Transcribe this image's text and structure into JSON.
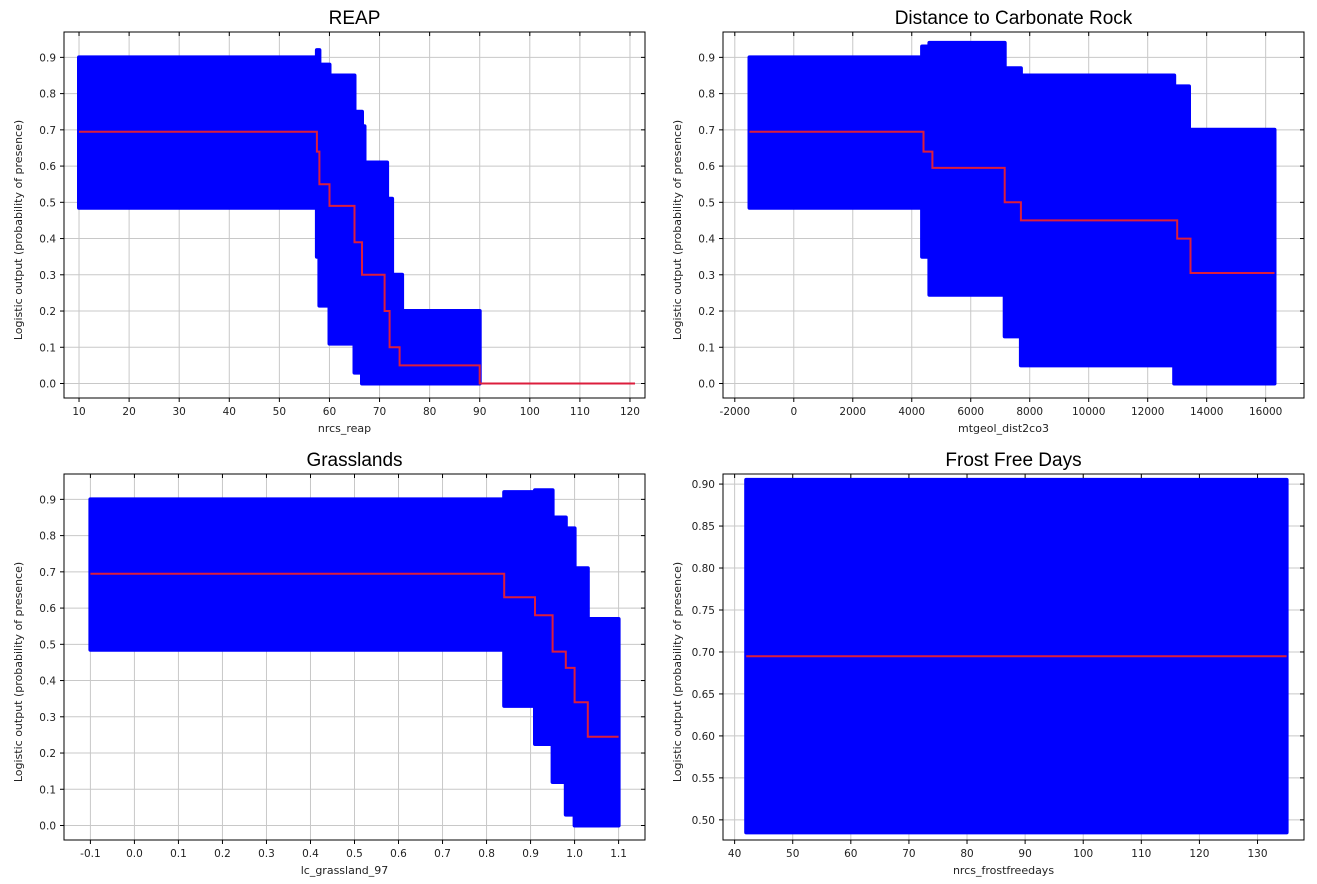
{
  "chart_data": [
    {
      "type": "line",
      "title": "REAP",
      "xlabel": "nrcs_reap",
      "ylabel": "Logistic output (probability of presence)",
      "xlim": [
        7,
        123
      ],
      "ylim": [
        -0.04,
        0.97
      ],
      "xticks": [
        10,
        20,
        30,
        40,
        50,
        60,
        70,
        80,
        90,
        100,
        110,
        120
      ],
      "xtick_labels": [
        "10",
        "20",
        "30",
        "40",
        "50",
        "60",
        "70",
        "80",
        "90",
        "100",
        "110",
        "120"
      ],
      "yticks": [
        0,
        0.1,
        0.2,
        0.3,
        0.4,
        0.5,
        0.6,
        0.7,
        0.8,
        0.9
      ],
      "ytick_labels": [
        "0.0",
        "0.1",
        "0.2",
        "0.3",
        "0.4",
        "0.5",
        "0.6",
        "0.7",
        "0.8",
        "0.9"
      ],
      "grid": true,
      "series": [
        {
          "role": "band",
          "color": "#0000ff",
          "x": [
            10,
            57.5,
            57.5,
            58,
            58,
            60,
            60,
            65,
            65,
            66.5,
            66.5,
            67,
            67,
            71.5,
            71.5,
            72.5,
            72.5,
            74.5,
            74.5,
            90,
            90
          ],
          "upper": [
            0.9,
            0.9,
            0.92,
            0.92,
            0.88,
            0.88,
            0.85,
            0.85,
            0.75,
            0.75,
            0.71,
            0.71,
            0.61,
            0.61,
            0.51,
            0.51,
            0.3,
            0.3,
            0.2,
            0.2,
            0
          ],
          "lower": [
            0.485,
            0.485,
            0.35,
            0.35,
            0.215,
            0.215,
            0.11,
            0.11,
            0.03,
            0.03,
            0.0,
            0.0,
            0.0,
            0.0,
            0.0,
            0.0,
            0.0,
            0.0,
            0.0,
            0.0,
            0
          ]
        },
        {
          "role": "mean",
          "color": "#dc1e3c",
          "x": [
            10,
            57.5,
            57.5,
            58,
            58,
            60,
            60,
            65,
            65,
            66.5,
            66.5,
            71,
            71,
            72,
            72,
            74,
            74,
            90,
            90,
            121
          ],
          "y": [
            0.695,
            0.695,
            0.64,
            0.64,
            0.55,
            0.55,
            0.49,
            0.49,
            0.39,
            0.39,
            0.3,
            0.3,
            0.2,
            0.2,
            0.1,
            0.1,
            0.05,
            0.05,
            0.0,
            0.0
          ]
        }
      ]
    },
    {
      "type": "line",
      "title": "Distance to Carbonate Rock",
      "xlabel": "mtgeol_dist2co3",
      "ylabel": "Logistic output (probability of presence)",
      "xlim": [
        -2400,
        17300
      ],
      "ylim": [
        -0.04,
        0.97
      ],
      "xticks": [
        -2000,
        0,
        2000,
        4000,
        6000,
        8000,
        10000,
        12000,
        14000,
        16000
      ],
      "xtick_labels": [
        "-2000",
        "0",
        "2000",
        "4000",
        "6000",
        "8000",
        "10000",
        "12000",
        "14000",
        "16000"
      ],
      "yticks": [
        0,
        0.1,
        0.2,
        0.3,
        0.4,
        0.5,
        0.6,
        0.7,
        0.8,
        0.9
      ],
      "ytick_labels": [
        "0.0",
        "0.1",
        "0.2",
        "0.3",
        "0.4",
        "0.5",
        "0.6",
        "0.7",
        "0.8",
        "0.9"
      ],
      "grid": true,
      "series": [
        {
          "role": "band",
          "color": "#0000ff",
          "x": [
            -1500,
            4350,
            4350,
            4600,
            4600,
            7150,
            7150,
            7700,
            7700,
            12900,
            12900,
            13400,
            13400,
            16300
          ],
          "upper": [
            0.9,
            0.9,
            0.93,
            0.93,
            0.94,
            0.94,
            0.87,
            0.87,
            0.85,
            0.85,
            0.82,
            0.82,
            0.7,
            0.7
          ],
          "lower": [
            0.485,
            0.485,
            0.35,
            0.35,
            0.245,
            0.245,
            0.13,
            0.13,
            0.05,
            0.05,
            0.0,
            0.0,
            0.0,
            0.0
          ]
        },
        {
          "role": "mean",
          "color": "#dc1e3c",
          "x": [
            -1500,
            4400,
            4400,
            4700,
            4700,
            7150,
            7150,
            7700,
            7700,
            13000,
            13000,
            13450,
            13450,
            16300
          ],
          "y": [
            0.695,
            0.695,
            0.64,
            0.64,
            0.595,
            0.595,
            0.5,
            0.5,
            0.45,
            0.45,
            0.4,
            0.4,
            0.305,
            0.305
          ]
        }
      ]
    },
    {
      "type": "line",
      "title": "Grasslands",
      "xlabel": "lc_grassland_97",
      "ylabel": "Logistic output (probability of presence)",
      "xlim": [
        -0.16,
        1.16
      ],
      "ylim": [
        -0.04,
        0.97
      ],
      "xticks": [
        -0.1,
        0,
        0.1,
        0.2,
        0.3,
        0.4,
        0.5,
        0.6,
        0.7,
        0.8,
        0.9,
        1.0,
        1.1
      ],
      "xtick_labels": [
        "-0.1",
        "0.0",
        "0.1",
        "0.2",
        "0.3",
        "0.4",
        "0.5",
        "0.6",
        "0.7",
        "0.8",
        "0.9",
        "1.0",
        "1.1"
      ],
      "yticks": [
        0,
        0.1,
        0.2,
        0.3,
        0.4,
        0.5,
        0.6,
        0.7,
        0.8,
        0.9
      ],
      "ytick_labels": [
        "0.0",
        "0.1",
        "0.2",
        "0.3",
        "0.4",
        "0.5",
        "0.6",
        "0.7",
        "0.8",
        "0.9"
      ],
      "grid": true,
      "series": [
        {
          "role": "band",
          "color": "#0000ff",
          "x": [
            -0.1,
            0.84,
            0.84,
            0.91,
            0.91,
            0.95,
            0.95,
            0.98,
            0.98,
            1.0,
            1.0,
            1.03,
            1.03,
            1.1
          ],
          "upper": [
            0.9,
            0.9,
            0.92,
            0.92,
            0.925,
            0.925,
            0.85,
            0.85,
            0.82,
            0.82,
            0.71,
            0.71,
            0.57,
            0.57
          ],
          "lower": [
            0.485,
            0.485,
            0.33,
            0.33,
            0.225,
            0.225,
            0.12,
            0.12,
            0.03,
            0.03,
            0.0,
            0.0,
            0.0,
            0.0
          ]
        },
        {
          "role": "mean",
          "color": "#dc1e3c",
          "x": [
            -0.1,
            0.84,
            0.84,
            0.91,
            0.91,
            0.95,
            0.95,
            0.98,
            0.98,
            1.0,
            1.0,
            1.03,
            1.03,
            1.1
          ],
          "y": [
            0.695,
            0.695,
            0.63,
            0.63,
            0.58,
            0.58,
            0.48,
            0.48,
            0.435,
            0.435,
            0.34,
            0.34,
            0.245,
            0.245
          ]
        }
      ]
    },
    {
      "type": "line",
      "title": "Frost Free Days",
      "xlabel": "nrcs_frostfreedays",
      "ylabel": "Logistic output (probability of presence)",
      "xlim": [
        38,
        138
      ],
      "ylim": [
        0.476,
        0.912
      ],
      "xticks": [
        40,
        50,
        60,
        70,
        80,
        90,
        100,
        110,
        120,
        130
      ],
      "xtick_labels": [
        "40",
        "50",
        "60",
        "70",
        "80",
        "90",
        "100",
        "110",
        "120",
        "130"
      ],
      "yticks": [
        0.5,
        0.55,
        0.6,
        0.65,
        0.7,
        0.75,
        0.8,
        0.85,
        0.9
      ],
      "ytick_labels": [
        "0.50",
        "0.55",
        "0.60",
        "0.65",
        "0.70",
        "0.75",
        "0.80",
        "0.85",
        "0.90"
      ],
      "grid": true,
      "series": [
        {
          "role": "band",
          "color": "#0000ff",
          "x": [
            42,
            135
          ],
          "upper": [
            0.905,
            0.905
          ],
          "lower": [
            0.485,
            0.485
          ]
        },
        {
          "role": "mean",
          "color": "#dc1e3c",
          "x": [
            42,
            135
          ],
          "y": [
            0.695,
            0.695
          ]
        }
      ]
    }
  ]
}
